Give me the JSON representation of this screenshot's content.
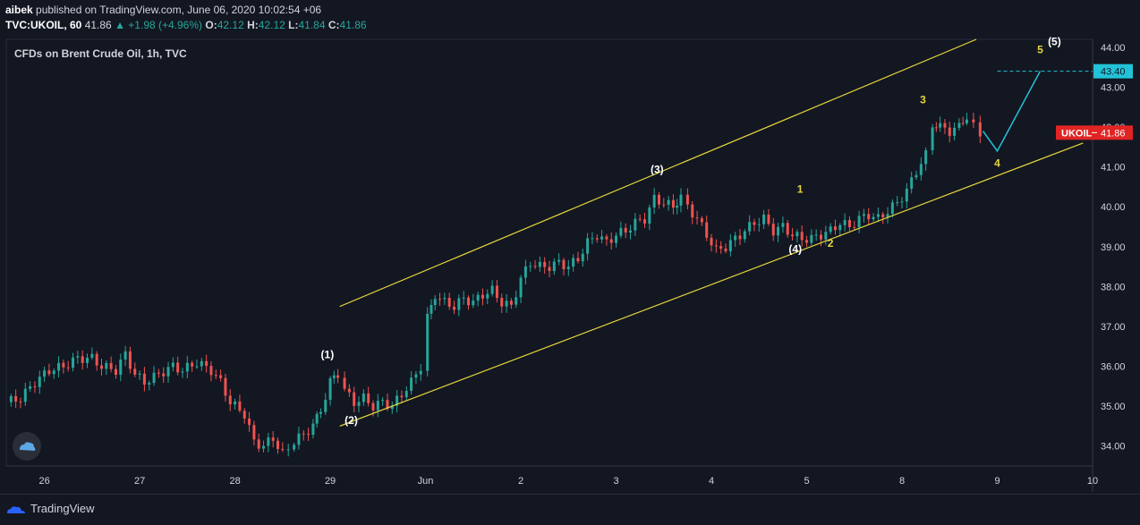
{
  "header": {
    "publisher_name": "aibek",
    "published_text": "published on TradingView.com, June 06, 2020 10:02:54 +06",
    "symbol": "TVC:UKOIL, 60",
    "last": "41.86",
    "change": "+1.98 (+4.96%)",
    "o_label": "O:",
    "o_value": "42.12",
    "h_label": "H:",
    "h_value": "42.12",
    "l_label": "L:",
    "l_value": "41.84",
    "c_label": "C:",
    "c_value": "41.86"
  },
  "legend_title": "CFDs on Brent Crude Oil, 1h, TVC",
  "footer": {
    "brand": "TradingView"
  },
  "colors": {
    "bg": "#131722",
    "up": "#26a69a",
    "down": "#ef5350",
    "channel": "#e6d63c",
    "projection": "#22c3d8",
    "target_badge": "#22c3d8",
    "price_badge": "#e02424"
  },
  "icons": [
    "tradingview-logo-icon",
    "tradingview-badge-icon",
    "triangle-up-icon"
  ],
  "chart_data": {
    "type": "candlestick",
    "y_range": [
      33.5,
      44.2
    ],
    "y_ticks": [
      "44.00",
      "43.00",
      "42.00",
      "41.00",
      "40.00",
      "39.00",
      "38.00",
      "37.00",
      "36.00",
      "35.00",
      "34.00"
    ],
    "x_range": [
      25.6,
      37.0
    ],
    "x_ticks": [
      {
        "t": 26,
        "label": "26"
      },
      {
        "t": 27,
        "label": "27"
      },
      {
        "t": 28,
        "label": "28"
      },
      {
        "t": 29,
        "label": "29"
      },
      {
        "t": 30,
        "label": "Jun"
      },
      {
        "t": 31,
        "label": "2"
      },
      {
        "t": 32,
        "label": "3"
      },
      {
        "t": 33,
        "label": "4"
      },
      {
        "t": 34,
        "label": "5"
      },
      {
        "t": 35,
        "label": "8"
      },
      {
        "t": 36,
        "label": "9"
      },
      {
        "t": 37,
        "label": "10"
      }
    ],
    "price_path": [
      [
        25.6,
        35.1
      ],
      [
        25.75,
        35.2
      ],
      [
        25.9,
        35.6
      ],
      [
        26.05,
        35.9
      ],
      [
        26.2,
        36.0
      ],
      [
        26.35,
        36.2
      ],
      [
        26.5,
        36.2
      ],
      [
        26.6,
        36.0
      ],
      [
        26.75,
        35.9
      ],
      [
        26.85,
        36.3
      ],
      [
        26.95,
        35.8
      ],
      [
        27.05,
        35.6
      ],
      [
        27.2,
        35.8
      ],
      [
        27.35,
        36.0
      ],
      [
        27.45,
        35.9
      ],
      [
        27.6,
        36.1
      ],
      [
        27.75,
        35.9
      ],
      [
        27.85,
        35.6
      ],
      [
        27.95,
        35.1
      ],
      [
        28.1,
        34.8
      ],
      [
        28.2,
        34.1
      ],
      [
        28.3,
        34.0
      ],
      [
        28.4,
        34.2
      ],
      [
        28.5,
        33.8
      ],
      [
        28.62,
        34.1
      ],
      [
        28.72,
        34.3
      ],
      [
        28.82,
        34.5
      ],
      [
        28.9,
        34.9
      ],
      [
        29.0,
        35.6
      ],
      [
        29.08,
        35.8
      ],
      [
        29.15,
        35.4
      ],
      [
        29.25,
        35.1
      ],
      [
        29.35,
        35.2
      ],
      [
        29.45,
        35.0
      ],
      [
        29.55,
        35.1
      ],
      [
        29.65,
        35.0
      ],
      [
        29.75,
        35.3
      ],
      [
        29.85,
        35.6
      ],
      [
        29.95,
        36.0
      ],
      [
        30.02,
        37.2
      ],
      [
        30.1,
        37.8
      ],
      [
        30.2,
        37.6
      ],
      [
        30.3,
        37.5
      ],
      [
        30.4,
        37.7
      ],
      [
        30.5,
        37.6
      ],
      [
        30.6,
        37.8
      ],
      [
        30.7,
        37.9
      ],
      [
        30.8,
        37.6
      ],
      [
        30.9,
        37.5
      ],
      [
        31.0,
        38.2
      ],
      [
        31.1,
        38.6
      ],
      [
        31.2,
        38.5
      ],
      [
        31.3,
        38.5
      ],
      [
        31.4,
        38.6
      ],
      [
        31.5,
        38.5
      ],
      [
        31.6,
        38.7
      ],
      [
        31.7,
        39.1
      ],
      [
        31.8,
        39.3
      ],
      [
        31.9,
        39.1
      ],
      [
        32.0,
        39.3
      ],
      [
        32.1,
        39.4
      ],
      [
        32.2,
        39.6
      ],
      [
        32.3,
        39.7
      ],
      [
        32.4,
        40.2
      ],
      [
        32.5,
        40.1
      ],
      [
        32.6,
        40.0
      ],
      [
        32.68,
        40.3
      ],
      [
        32.75,
        40.0
      ],
      [
        32.85,
        39.7
      ],
      [
        32.95,
        39.3
      ],
      [
        33.05,
        38.9
      ],
      [
        33.15,
        39.0
      ],
      [
        33.25,
        39.2
      ],
      [
        33.35,
        39.4
      ],
      [
        33.45,
        39.6
      ],
      [
        33.55,
        39.7
      ],
      [
        33.65,
        39.4
      ],
      [
        33.75,
        39.5
      ],
      [
        33.85,
        39.3
      ],
      [
        33.95,
        39.2
      ],
      [
        34.05,
        39.2
      ],
      [
        34.15,
        39.3
      ],
      [
        34.25,
        39.4
      ],
      [
        34.35,
        39.6
      ],
      [
        34.45,
        39.5
      ],
      [
        34.55,
        39.7
      ],
      [
        34.65,
        39.8
      ],
      [
        34.75,
        39.7
      ],
      [
        34.85,
        39.9
      ],
      [
        34.95,
        40.1
      ],
      [
        35.05,
        40.4
      ],
      [
        35.15,
        40.9
      ],
      [
        35.25,
        41.3
      ],
      [
        35.32,
        42.1
      ],
      [
        35.4,
        42.0
      ],
      [
        35.5,
        41.9
      ],
      [
        35.6,
        42.0
      ],
      [
        35.68,
        42.3
      ],
      [
        35.75,
        42.0
      ],
      [
        35.82,
        41.86
      ]
    ],
    "channel_upper": [
      [
        29.1,
        37.5
      ],
      [
        35.78,
        44.2
      ]
    ],
    "channel_lower": [
      [
        29.1,
        34.5
      ],
      [
        36.9,
        41.6
      ]
    ],
    "projection_path": [
      [
        35.85,
        41.9
      ],
      [
        36.0,
        41.4
      ],
      [
        36.45,
        43.4
      ]
    ],
    "target_level": {
      "value": 43.4,
      "label": "43.40"
    },
    "last_price": {
      "value": 41.86,
      "label": "41.86",
      "symbol": "UKOIL"
    },
    "wave_labels": [
      {
        "text": "(1)",
        "t": 28.97,
        "v": 36.2,
        "color": "#ffffff"
      },
      {
        "text": "(2)",
        "t": 29.22,
        "v": 34.55,
        "color": "#ffffff"
      },
      {
        "text": "(3)",
        "t": 32.43,
        "v": 40.85,
        "color": "#ffffff"
      },
      {
        "text": "(4)",
        "t": 33.88,
        "v": 38.85,
        "color": "#ffffff"
      },
      {
        "text": "(5)",
        "t": 36.6,
        "v": 44.05,
        "color": "#ffffff"
      },
      {
        "text": "1",
        "t": 33.93,
        "v": 40.35,
        "color": "#e6d63c"
      },
      {
        "text": "2",
        "t": 34.25,
        "v": 39.0,
        "color": "#e6d63c"
      },
      {
        "text": "3",
        "t": 35.22,
        "v": 42.6,
        "color": "#e6d63c"
      },
      {
        "text": "4",
        "t": 36.0,
        "v": 41.0,
        "color": "#e6d63c"
      },
      {
        "text": "5",
        "t": 36.45,
        "v": 43.85,
        "color": "#e6d63c"
      }
    ]
  }
}
